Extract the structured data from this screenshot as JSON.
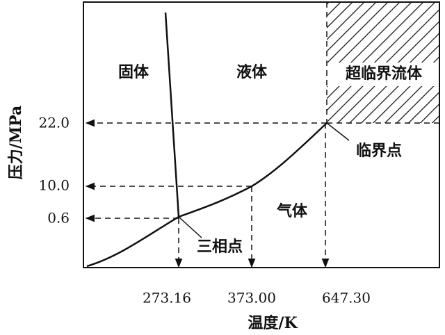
{
  "axes": {
    "y_title": "压力/MPa",
    "x_title": "温度/K"
  },
  "y_ticks": [
    "22.0",
    "10.0",
    "0.6"
  ],
  "x_ticks": [
    "273.16",
    "373.00",
    "647.30"
  ],
  "regions": [
    "固体",
    "液体",
    "超临界流体",
    "气体"
  ],
  "points": [
    "临界点",
    "三相点"
  ]
}
